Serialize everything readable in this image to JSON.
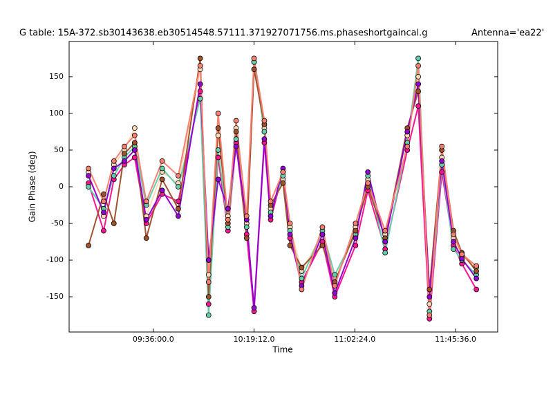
{
  "chart_data": {
    "type": "line",
    "title": "G table: 15A-372.sb30143638.eb30514548.57111.371927071756.ms.phaseshortgaincal.g",
    "antenna": "Antenna='ea22'",
    "x_label": "Time",
    "y_label": "Gain Phase (deg)",
    "grid": false,
    "x": [
      548.2,
      554.7,
      559.1,
      563.6,
      568.0,
      573.0,
      579.8,
      586.7,
      596.1,
      599.7,
      603.8,
      608.0,
      611.5,
      616.0,
      619.2,
      623.6,
      626.3,
      631.6,
      634.6,
      639.6,
      648.5,
      653.8,
      662.7,
      668.0,
      675.4,
      684.9,
      689.6,
      694.4,
      699.7,
      704.7,
      708.3,
      714.5
    ],
    "xlim": [
      539.9,
      723.65
    ],
    "xticks": [
      {
        "value": 576,
        "label": "09:36:00.0"
      },
      {
        "value": 619.2,
        "label": "10:19:12.0"
      },
      {
        "value": 662.4,
        "label": "11:02:24.0"
      },
      {
        "value": 705.6,
        "label": "11:45:36.0"
      }
    ],
    "ylim": [
      -198,
      198
    ],
    "yticks": [
      -150,
      -100,
      -50,
      0,
      50,
      100,
      150
    ],
    "series": [
      {
        "color": "#ffdab9",
        "values": [
          20,
          -40,
          30,
          50,
          80,
          -40,
          20,
          5,
          160,
          -120,
          70,
          -40,
          80,
          -50,
          170,
          80,
          -30,
          10,
          -55,
          -115,
          -65,
          -130,
          -55,
          10,
          -65,
          70,
          150,
          -160,
          40,
          -70,
          -95,
          -110
        ]
      },
      {
        "color": "#ff1493",
        "values": [
          5,
          -60,
          10,
          30,
          40,
          -50,
          -10,
          -20,
          130,
          -160,
          40,
          -60,
          60,
          -65,
          -170,
          60,
          -45,
          20,
          -70,
          -130,
          -75,
          -150,
          -80,
          -5,
          -85,
          50,
          110,
          -180,
          20,
          -80,
          -105,
          -140
        ]
      },
      {
        "color": "#66cdaa",
        "values": [
          0,
          -30,
          15,
          40,
          55,
          -25,
          25,
          0,
          120,
          -175,
          50,
          -55,
          65,
          -55,
          170,
          75,
          -35,
          15,
          -60,
          -125,
          -60,
          -120,
          -65,
          15,
          -90,
          60,
          175,
          -170,
          30,
          -85,
          -100,
          -120
        ]
      },
      {
        "color": "#a0522d",
        "values": [
          -80,
          -10,
          -50,
          45,
          60,
          -70,
          10,
          -30,
          175,
          -150,
          80,
          -50,
          75,
          -70,
          160,
          85,
          -25,
          5,
          -80,
          -110,
          -80,
          -130,
          -60,
          0,
          -70,
          80,
          130,
          -140,
          50,
          -60,
          -90,
          -115
        ]
      },
      {
        "color": "#9400d3",
        "values": [
          15,
          -35,
          25,
          35,
          50,
          -45,
          -5,
          -40,
          140,
          -100,
          10,
          -30,
          55,
          -45,
          -165,
          65,
          -40,
          25,
          -65,
          -135,
          -65,
          -145,
          -70,
          20,
          -75,
          75,
          140,
          -150,
          35,
          -75,
          -98,
          -125
        ]
      },
      {
        "color": "#fa8072",
        "values": [
          25,
          -20,
          35,
          55,
          70,
          -20,
          35,
          15,
          165,
          -130,
          100,
          -45,
          90,
          -40,
          175,
          90,
          -20,
          20,
          -50,
          -140,
          -55,
          -135,
          -50,
          5,
          -60,
          55,
          165,
          -175,
          55,
          -65,
          -92,
          -108
        ]
      }
    ]
  }
}
